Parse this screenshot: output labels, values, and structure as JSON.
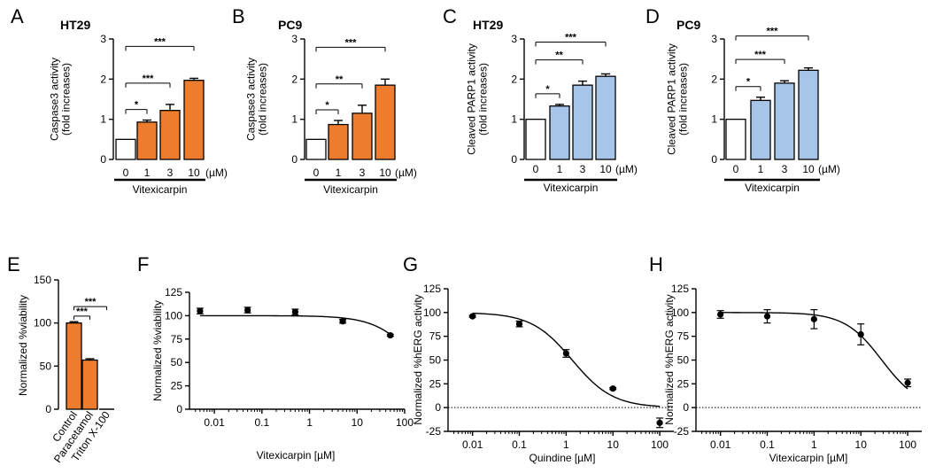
{
  "colors": {
    "orange": "#ee7c2e",
    "blue": "#a7c5e9",
    "ink": "#000000"
  },
  "chart_data": [
    {
      "id": "A",
      "type": "bar",
      "title": "HT29",
      "ylabel": [
        "Caspase3 activity",
        "(fold increases)"
      ],
      "categories": [
        "0",
        "1",
        "3",
        "10"
      ],
      "unit": "(µM)",
      "group_label": "Vitexicarpin",
      "values": [
        0.5,
        0.93,
        1.22,
        1.97
      ],
      "errors": [
        0,
        0.05,
        0.15,
        0.05
      ],
      "fills": [
        "#ffffff",
        "#ee7c2e",
        "#ee7c2e",
        "#ee7c2e"
      ],
      "ylim": [
        0,
        3
      ],
      "yticks": [
        "0",
        "1",
        "2",
        "3"
      ],
      "sig": [
        "*",
        "***",
        "***"
      ]
    },
    {
      "id": "B",
      "type": "bar",
      "title": "PC9",
      "ylabel": [
        "Caspase3 activity",
        "(fold increases)"
      ],
      "categories": [
        "0",
        "1",
        "3",
        "10"
      ],
      "unit": "(µM)",
      "group_label": "Vitexicarpin",
      "values": [
        0.5,
        0.87,
        1.15,
        1.85
      ],
      "errors": [
        0,
        0.1,
        0.2,
        0.15
      ],
      "fills": [
        "#ffffff",
        "#ee7c2e",
        "#ee7c2e",
        "#ee7c2e"
      ],
      "ylim": [
        0,
        3
      ],
      "yticks": [
        "0",
        "1",
        "2",
        "3"
      ],
      "sig": [
        "*",
        "**",
        "***"
      ]
    },
    {
      "id": "C",
      "type": "bar",
      "title": "HT29",
      "ylabel": [
        "Cleaved PARP1 activity",
        "(fold increases)"
      ],
      "categories": [
        "0",
        "1",
        "3",
        "10"
      ],
      "unit": "(µM)",
      "group_label": "Vitexicarpin",
      "values": [
        1.0,
        1.33,
        1.85,
        2.07
      ],
      "errors": [
        0,
        0.04,
        0.1,
        0.06
      ],
      "fills": [
        "#ffffff",
        "#a7c5e9",
        "#a7c5e9",
        "#a7c5e9"
      ],
      "ylim": [
        0,
        3
      ],
      "yticks": [
        "0",
        "1",
        "2",
        "3"
      ],
      "sig": [
        "*",
        "**",
        "***"
      ]
    },
    {
      "id": "D",
      "type": "bar",
      "title": "PC9",
      "ylabel": [
        "Cleaved PARP1 activity",
        "(fold increases)"
      ],
      "categories": [
        "0",
        "1",
        "3",
        "10"
      ],
      "unit": "(µM)",
      "group_label": "Vitexicarpin",
      "values": [
        1.0,
        1.47,
        1.9,
        2.22
      ],
      "errors": [
        0,
        0.08,
        0.06,
        0.06
      ],
      "fills": [
        "#ffffff",
        "#a7c5e9",
        "#a7c5e9",
        "#a7c5e9"
      ],
      "ylim": [
        0,
        3
      ],
      "yticks": [
        "0",
        "1",
        "2",
        "3"
      ],
      "sig": [
        "*",
        "***",
        "***"
      ]
    },
    {
      "id": "E",
      "type": "bar",
      "title": "",
      "ylabel": [
        "Normalized %viability"
      ],
      "categories": [
        "Control",
        "Paracetamol",
        "Triton X-100"
      ],
      "values": [
        100,
        57,
        0
      ],
      "errors": [
        1.5,
        1.5,
        0
      ],
      "fills": [
        "#ee7c2e",
        "#ee7c2e",
        "#ee7c2e"
      ],
      "ylim": [
        0,
        150
      ],
      "yticks": [
        "0",
        "50",
        "100",
        "150"
      ],
      "sig": [
        "***",
        "***"
      ]
    },
    {
      "id": "F",
      "type": "scatter",
      "title": "",
      "xlabel": "Vitexicarpin [µM]",
      "ylabel": [
        "Normalized %viability"
      ],
      "x": [
        0.005,
        0.05,
        0.5,
        5,
        50
      ],
      "y": [
        105,
        106,
        104,
        94,
        79
      ],
      "errors": [
        3,
        3,
        3,
        2,
        1
      ],
      "curve": {
        "top": 100,
        "bottom": 0,
        "ec50": 200,
        "hill": 1
      },
      "xlim": [
        0.003,
        100
      ],
      "xticks": [
        "0.01",
        "0.1",
        "1",
        "10",
        "100"
      ],
      "ylim": [
        0,
        125
      ],
      "yticks": [
        "0",
        "25",
        "50",
        "75",
        "100",
        "125"
      ]
    },
    {
      "id": "G",
      "type": "scatter",
      "title": "",
      "xlabel": "Quindine [µM]",
      "ylabel": [
        "Normalized %hERG activity"
      ],
      "x": [
        0.01,
        0.1,
        1,
        10,
        100
      ],
      "y": [
        96,
        88,
        57,
        20,
        -16
      ],
      "errors": [
        1,
        3,
        4,
        1,
        5
      ],
      "curve": {
        "top": 100,
        "bottom": 0,
        "ec50": 1.35,
        "hill": 1
      },
      "xlim": [
        0.003,
        200
      ],
      "xticks": [
        "0.01",
        "0.1",
        "1",
        "10",
        "100"
      ],
      "ylim": [
        -25,
        125
      ],
      "yticks": [
        "-25",
        "0",
        "25",
        "50",
        "75",
        "100",
        "125"
      ],
      "zero_line": true
    },
    {
      "id": "H",
      "type": "scatter",
      "title": "",
      "xlabel": "Vitexicarpin [µM]",
      "ylabel": [
        "Normalized %hERG activity"
      ],
      "x": [
        0.01,
        0.1,
        1,
        10,
        100
      ],
      "y": [
        98,
        96,
        93,
        77,
        26
      ],
      "errors": [
        4,
        7,
        10,
        11,
        4
      ],
      "curve": {
        "top": 100,
        "bottom": 0,
        "ec50": 28,
        "hill": 1.1
      },
      "xlim": [
        0.003,
        200
      ],
      "xticks": [
        "0.01",
        "0.1",
        "1",
        "10",
        "100"
      ],
      "ylim": [
        -25,
        125
      ],
      "yticks": [
        "-25",
        "0",
        "25",
        "50",
        "75",
        "100",
        "125"
      ],
      "zero_line": true
    }
  ]
}
